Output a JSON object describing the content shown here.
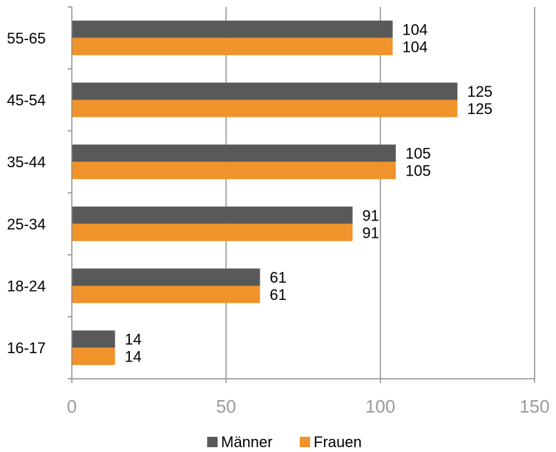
{
  "chart_data": {
    "type": "bar",
    "orientation": "horizontal",
    "categories": [
      "16-17",
      "18-24",
      "25-34",
      "35-44",
      "45-54",
      "55-65"
    ],
    "series": [
      {
        "name": "Männer",
        "color": "#595959",
        "values": [
          14,
          61,
          91,
          105,
          125,
          104
        ]
      },
      {
        "name": "Frauen",
        "color": "#f0932b",
        "values": [
          14,
          61,
          91,
          105,
          125,
          104
        ]
      }
    ],
    "xlim": [
      0,
      150
    ],
    "xticks": [
      0,
      50,
      100,
      150
    ],
    "grid": true,
    "legend_position": "bottom"
  }
}
